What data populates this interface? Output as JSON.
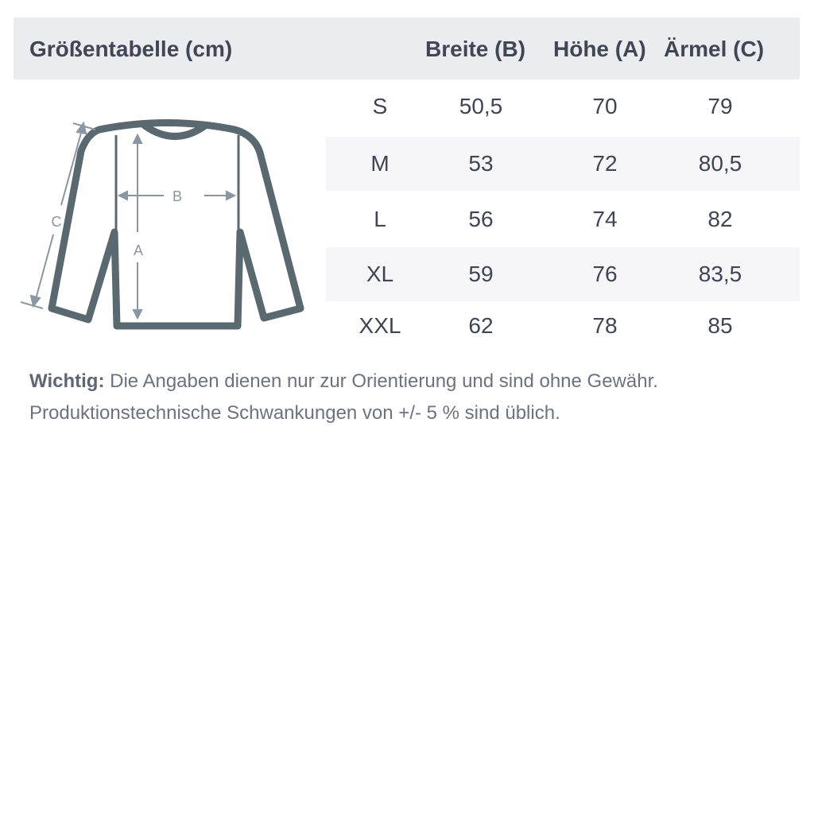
{
  "header": {
    "title": "Größentabelle (cm)",
    "columns": [
      "Breite (B)",
      "Höhe (A)",
      "Ärmel (C)"
    ]
  },
  "diagram": {
    "labels": {
      "a": "A",
      "b": "B",
      "c": "C"
    }
  },
  "rows": [
    {
      "size": "S",
      "breite": "50,5",
      "hoehe": "70",
      "aermel": "79"
    },
    {
      "size": "M",
      "breite": "53",
      "hoehe": "72",
      "aermel": "80,5"
    },
    {
      "size": "L",
      "breite": "56",
      "hoehe": "74",
      "aermel": "82"
    },
    {
      "size": "XL",
      "breite": "59",
      "hoehe": "76",
      "aermel": "83,5"
    },
    {
      "size": "XXL",
      "breite": "62",
      "hoehe": "78",
      "aermel": "85"
    }
  ],
  "note": {
    "bold": "Wichtig:",
    "line1": " Die Angaben dienen nur zur Orientierung und sind ohne Gewähr.",
    "line2": "Produktionstechnische Schwankungen von +/- 5 % sind üblich."
  },
  "colors": {
    "header_bg": "#ebecf0",
    "stripe": "#f6f6f8",
    "shirt": "#5a6870",
    "arrows": "#8a97a2"
  }
}
